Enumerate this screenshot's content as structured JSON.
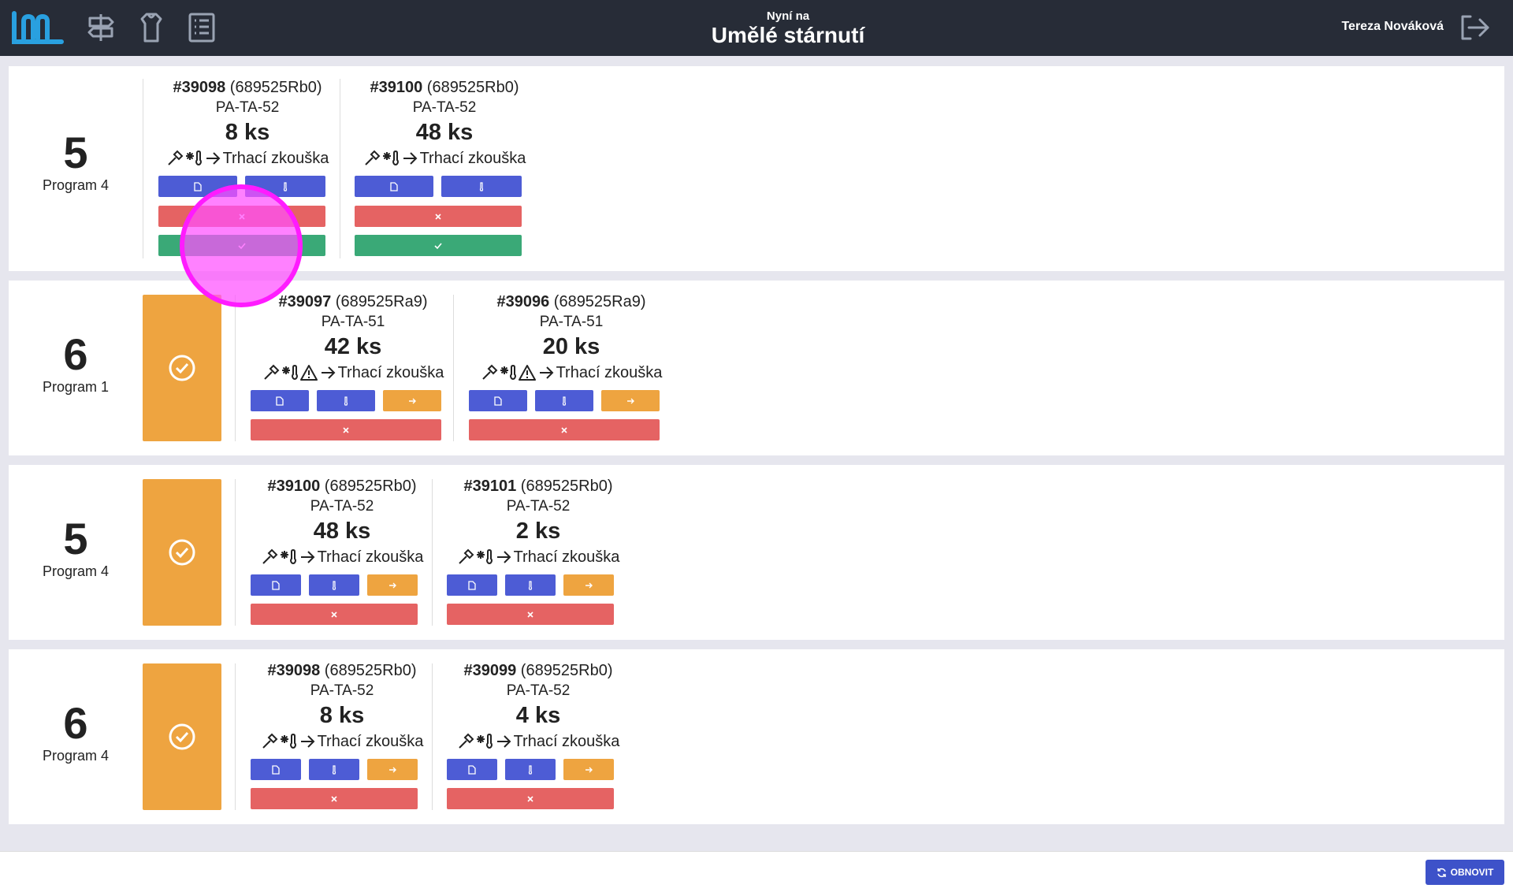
{
  "header": {
    "now_label": "Nyní na",
    "station": "Umělé stárnutí",
    "user_name": "Tereza Nováková",
    "nav_icons": [
      "signpost-icon",
      "hanger-icon",
      "list-icon"
    ],
    "logout_icon": "logout-icon"
  },
  "cards": [
    {
      "number": "5",
      "program": "Program 4",
      "items": [
        {
          "id": "#39098",
          "code": "(689525Rb0)",
          "part": "PA-TA-52",
          "qty": "8 ks",
          "process": "Trhací zkouška"
        },
        {
          "id": "#39100",
          "code": "(689525Rb0)",
          "part": "PA-TA-52",
          "qty": "48 ks",
          "process": "Trhací zkouška"
        }
      ]
    },
    {
      "number": "6",
      "program": "Program 1",
      "items": [
        {
          "id": "#39097",
          "code": "(689525Ra9)",
          "part": "PA-TA-51",
          "qty": "42 ks",
          "process": "Trhací zkouška"
        },
        {
          "id": "#39096",
          "code": "(689525Ra9)",
          "part": "PA-TA-51",
          "qty": "20 ks",
          "process": "Trhací zkouška"
        }
      ]
    },
    {
      "number": "5",
      "program": "Program 4",
      "items": [
        {
          "id": "#39100",
          "code": "(689525Rb0)",
          "part": "PA-TA-52",
          "qty": "48 ks",
          "process": "Trhací zkouška"
        },
        {
          "id": "#39101",
          "code": "(689525Rb0)",
          "part": "PA-TA-52",
          "qty": "2 ks",
          "process": "Trhací zkouška"
        }
      ]
    },
    {
      "number": "6",
      "program": "Program 4",
      "items": [
        {
          "id": "#39098",
          "code": "(689525Rb0)",
          "part": "PA-TA-52",
          "qty": "8 ks",
          "process": "Trhací zkouška"
        },
        {
          "id": "#39099",
          "code": "(689525Rb0)",
          "part": "PA-TA-52",
          "qty": "4 ks",
          "process": "Trhací zkouška"
        }
      ]
    }
  ],
  "footer": {
    "refresh_label": "OBNOVIT"
  },
  "colors": {
    "header_bg": "#272c37",
    "blue": "#4d5cd5",
    "red": "#e56363",
    "green": "#3aa977",
    "orange": "#eea440"
  }
}
